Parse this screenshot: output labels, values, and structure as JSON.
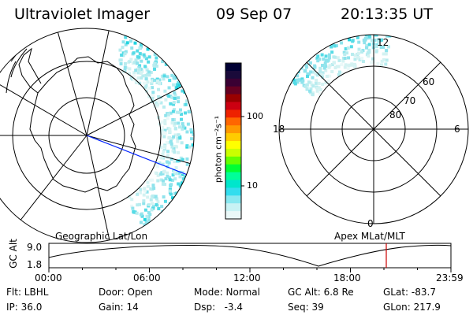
{
  "header": {
    "instrument": "Ultraviolet Imager",
    "date": "09 Sep 07",
    "time": "20:13:35 UT"
  },
  "colorbar": {
    "label": "photon cm⁻²s⁻¹",
    "ticks": [
      "100",
      "10"
    ],
    "colors": [
      "#000033",
      "#1a0a3a",
      "#3a0033",
      "#660022",
      "#990000",
      "#cc0011",
      "#ee2200",
      "#ff6600",
      "#ff9900",
      "#ffcc00",
      "#ffff00",
      "#ccff00",
      "#66ff00",
      "#00ff33",
      "#00ff99",
      "#00e6cc",
      "#33ddee",
      "#88e8f0",
      "#c8f2f4",
      "#eaf8f8"
    ]
  },
  "polar_plot": {
    "mlt_labels": {
      "top": "12",
      "left": "18",
      "right": "6",
      "bottom": "0"
    },
    "lat_labels": [
      "80",
      "70",
      "60"
    ]
  },
  "timeline": {
    "left_label": "Geographic Lat/Lon",
    "right_label": "Apex MLat/MLT",
    "axis_label": "GC Alt",
    "y_ticks": [
      "9.0",
      "1.8"
    ],
    "x_ticks": [
      "00:00",
      "06:00",
      "12:00",
      "18:00",
      "23:59"
    ],
    "marker_time": "20:13"
  },
  "info": {
    "flt": "Flt: LBHL",
    "ip": "IP: 36.0",
    "door": "Door: Open",
    "gain": "Gain: 14",
    "mode": "Mode: Normal",
    "dsp": "Dsp:   -3.4",
    "gcalt": "GC Alt: 6.8 Re",
    "seq": "Seq: 39",
    "glat": "GLat: -83.7",
    "glon": "GLon: 217.9"
  }
}
